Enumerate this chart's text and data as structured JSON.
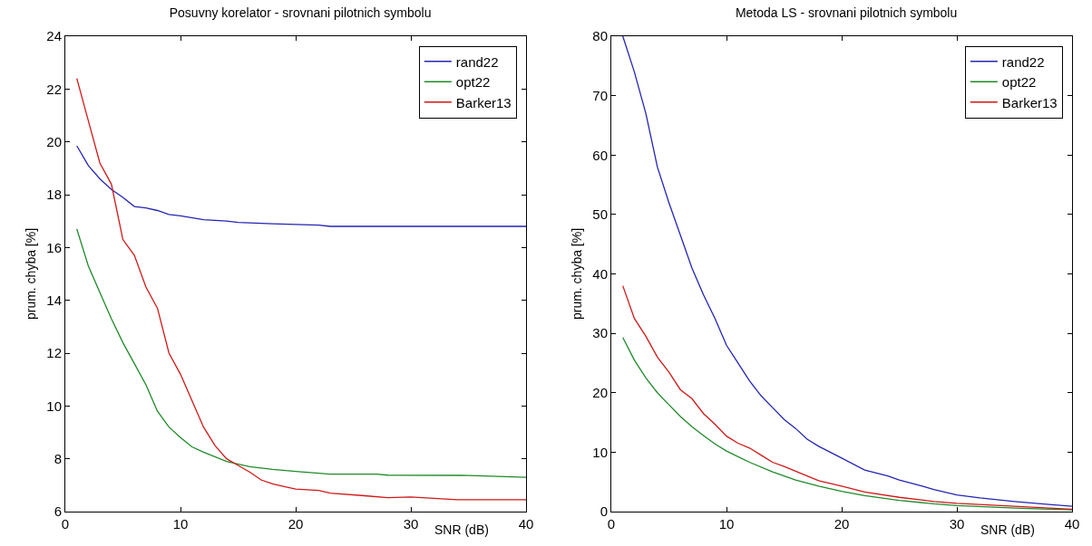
{
  "chart_data": [
    {
      "type": "line",
      "title": "Posuvny korelator - srovnani pilotnich symbolu",
      "xlabel": "SNR (dB)",
      "ylabel": "prum. chyba [%]",
      "xlim": [
        0,
        40
      ],
      "xticks": [
        0,
        10,
        20,
        30,
        40
      ],
      "ylim": [
        6,
        24
      ],
      "yticks": [
        6,
        8,
        10,
        12,
        14,
        16,
        18,
        20,
        22,
        24
      ],
      "grid": false,
      "legend": "top right",
      "marker": "none",
      "line_style": "solid",
      "series": [
        {
          "name": "rand22",
          "color": "#2424b4",
          "x": [
            1,
            2,
            3,
            4,
            5,
            6,
            7,
            8,
            9,
            10,
            12,
            14,
            15,
            18,
            22,
            23,
            30,
            40
          ],
          "values": [
            19.85,
            19.1,
            18.6,
            18.2,
            17.9,
            17.55,
            17.5,
            17.4,
            17.25,
            17.2,
            17.05,
            17.0,
            16.95,
            16.9,
            16.85,
            16.8,
            16.8,
            16.8
          ]
        },
        {
          "name": "opt22",
          "color": "#1f8a2a",
          "x": [
            1,
            2,
            3,
            4,
            5,
            6,
            7,
            8,
            9,
            10,
            11,
            12,
            14,
            16,
            18,
            20,
            23,
            27,
            28,
            35,
            40
          ],
          "values": [
            16.7,
            15.3,
            14.3,
            13.3,
            12.4,
            11.6,
            10.8,
            9.8,
            9.2,
            8.8,
            8.45,
            8.25,
            7.9,
            7.7,
            7.6,
            7.52,
            7.42,
            7.42,
            7.38,
            7.37,
            7.3
          ]
        },
        {
          "name": "Barker13",
          "color": "#d01818",
          "x": [
            1,
            2,
            3,
            4,
            5,
            6,
            7,
            8,
            9,
            10,
            11,
            12,
            13,
            14,
            15,
            16,
            17,
            18,
            19,
            20,
            22,
            23,
            26,
            28,
            30,
            34,
            40
          ],
          "values": [
            22.4,
            20.8,
            19.2,
            18.4,
            16.3,
            15.7,
            14.5,
            13.7,
            12.0,
            11.2,
            10.2,
            9.2,
            8.5,
            8.0,
            7.75,
            7.5,
            7.2,
            7.05,
            6.95,
            6.85,
            6.8,
            6.7,
            6.6,
            6.53,
            6.55,
            6.45,
            6.45
          ]
        }
      ]
    },
    {
      "type": "line",
      "title": "Metoda LS - srovnani pilotnich symbolu",
      "xlabel": "SNR (dB)",
      "ylabel": "prum. chyba [%]",
      "xlim": [
        0,
        40
      ],
      "xticks": [
        0,
        10,
        20,
        30,
        40
      ],
      "ylim": [
        0,
        80
      ],
      "yticks": [
        0,
        10,
        20,
        30,
        40,
        50,
        60,
        70,
        80
      ],
      "grid": false,
      "legend": "top right",
      "marker": "none",
      "line_style": "solid",
      "series": [
        {
          "name": "rand22",
          "color": "#2424b4",
          "x": [
            1,
            2,
            3,
            4,
            5,
            6,
            7,
            8,
            9,
            10,
            11,
            12,
            13,
            14,
            15,
            16,
            17,
            18,
            20,
            22,
            24,
            25,
            27,
            28,
            30,
            32,
            35,
            38,
            40
          ],
          "values": [
            80,
            74,
            67,
            58,
            52,
            46.5,
            41,
            36.5,
            32.5,
            28,
            25,
            22,
            19.5,
            17.5,
            15.5,
            14,
            12.2,
            11,
            9,
            7,
            6,
            5.3,
            4.3,
            3.7,
            2.8,
            2.3,
            1.7,
            1.2,
            0.9
          ]
        },
        {
          "name": "opt22",
          "color": "#1f8a2a",
          "x": [
            1,
            2,
            3,
            4,
            5,
            6,
            7,
            8,
            9,
            10,
            12,
            14,
            16,
            18,
            20,
            22,
            25,
            28,
            30,
            35,
            40
          ],
          "values": [
            29.3,
            25.5,
            22.5,
            20,
            18,
            16,
            14.3,
            12.8,
            11.4,
            10.2,
            8.3,
            6.7,
            5.3,
            4.3,
            3.4,
            2.7,
            1.9,
            1.3,
            1.0,
            0.6,
            0.3
          ]
        },
        {
          "name": "Barker13",
          "color": "#d01818",
          "x": [
            1,
            2,
            3,
            4,
            5,
            6,
            7,
            8,
            9,
            10,
            11,
            12,
            13,
            14,
            15,
            16,
            17,
            18,
            20,
            22,
            25,
            28,
            30,
            35,
            40
          ],
          "values": [
            38,
            32.5,
            29.5,
            26,
            23.5,
            20.5,
            19,
            16.5,
            14.7,
            12.7,
            11.5,
            10.7,
            9.5,
            8.3,
            7.6,
            6.8,
            6,
            5.2,
            4.3,
            3.3,
            2.4,
            1.7,
            1.4,
            0.9,
            0.4
          ]
        }
      ]
    }
  ]
}
